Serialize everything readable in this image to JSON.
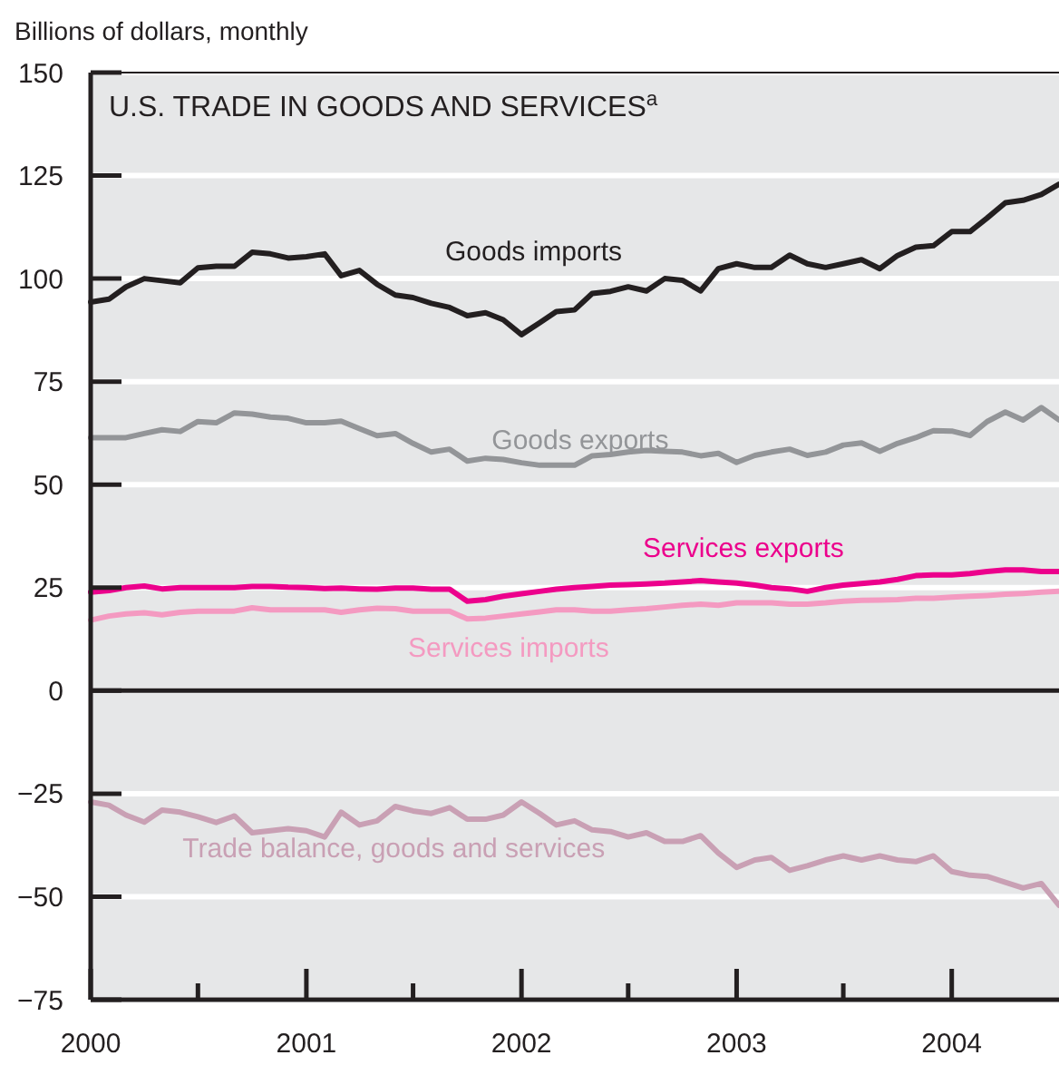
{
  "chart_data": {
    "type": "line",
    "title": "U.S. TRADE IN GOODS AND SERVICES$^{a}$",
    "ylabel": "Billions of dollars, monthly",
    "x": [
      "2000-01",
      "2000-02",
      "2000-03",
      "2000-04",
      "2000-05",
      "2000-06",
      "2000-07",
      "2000-08",
      "2000-09",
      "2000-10",
      "2000-11",
      "2000-12",
      "2001-01",
      "2001-02",
      "2001-03",
      "2001-04",
      "2001-05",
      "2001-06",
      "2001-07",
      "2001-08",
      "2001-09",
      "2001-10",
      "2001-11",
      "2001-12",
      "2002-01",
      "2002-02",
      "2002-03",
      "2002-04",
      "2002-05",
      "2002-06",
      "2002-07",
      "2002-08",
      "2002-09",
      "2002-10",
      "2002-11",
      "2002-12",
      "2003-01",
      "2003-02",
      "2003-03",
      "2003-04",
      "2003-05",
      "2003-06",
      "2003-07",
      "2003-08",
      "2003-09",
      "2003-10",
      "2003-11",
      "2003-12",
      "2004-01",
      "2004-02",
      "2004-03",
      "2004-04",
      "2004-05",
      "2004-06",
      "2004-07"
    ],
    "series": [
      {
        "name": "Goods imports",
        "color": "#231f20",
        "values": [
          94.3,
          95,
          98,
          100,
          99.5,
          99,
          102.6,
          103,
          103,
          106.4,
          106,
          105,
          105.3,
          106,
          100.7,
          102,
          98.6,
          96,
          95.4,
          94,
          93,
          91,
          91.7,
          90,
          86.4,
          89.3,
          92,
          92.4,
          96.4,
          96.9,
          98,
          97,
          100,
          99.6,
          97,
          102.4,
          103.6,
          102.7,
          102.7,
          105.7,
          103.6,
          102.7,
          103.6,
          104.6,
          102.4,
          105.6,
          107.6,
          108,
          111.4,
          111.4,
          114.7,
          118.4,
          119,
          120.4,
          122.9
        ]
      },
      {
        "name": "Goods exports",
        "color": "#939598",
        "values": [
          61.4,
          61.4,
          61.4,
          62.4,
          63.3,
          62.9,
          65.3,
          65,
          67.4,
          67.1,
          66.4,
          66.1,
          65,
          65,
          65.4,
          63.6,
          61.9,
          62.4,
          60,
          57.9,
          58.6,
          55.7,
          56.4,
          56.1,
          55.3,
          54.7,
          54.7,
          54.7,
          57,
          57.3,
          57.9,
          58.3,
          58.1,
          57.9,
          57,
          57.6,
          55.4,
          57.1,
          57.9,
          58.6,
          57.1,
          57.9,
          59.6,
          60.1,
          58.1,
          60,
          61.4,
          63.1,
          63,
          61.9,
          65.3,
          67.6,
          65.7,
          68.7,
          65.7
        ]
      },
      {
        "name": "Services exports",
        "color": "#ec008c",
        "values": [
          23.9,
          24.3,
          25,
          25.4,
          24.7,
          25,
          25,
          25,
          25,
          25.3,
          25.3,
          25.1,
          25,
          24.8,
          24.9,
          24.7,
          24.6,
          24.9,
          24.9,
          24.6,
          24.6,
          21.7,
          22.1,
          22.9,
          23.5,
          24.1,
          24.6,
          25,
          25.3,
          25.6,
          25.7,
          25.9,
          26.1,
          26.4,
          26.7,
          26.4,
          26.1,
          25.6,
          25,
          24.7,
          24.1,
          25,
          25.6,
          26,
          26.4,
          27,
          27.9,
          28.1,
          28.1,
          28.4,
          28.9,
          29.3,
          29.3,
          28.9,
          28.9
        ]
      },
      {
        "name": "Services imports",
        "color": "#f49ac1",
        "values": [
          17.1,
          18.1,
          18.6,
          18.9,
          18.4,
          19,
          19.3,
          19.3,
          19.3,
          20.1,
          19.6,
          19.6,
          19.6,
          19.6,
          19,
          19.6,
          20,
          19.9,
          19.3,
          19.3,
          19.3,
          17.4,
          17.6,
          18.1,
          18.6,
          19.1,
          19.6,
          19.6,
          19.3,
          19.3,
          19.6,
          19.9,
          20.3,
          20.7,
          21,
          20.7,
          21.3,
          21.3,
          21.3,
          21,
          21,
          21.3,
          21.7,
          21.9,
          22,
          22.1,
          22.4,
          22.4,
          22.7,
          22.9,
          23.1,
          23.4,
          23.6,
          23.9,
          24.1
        ]
      },
      {
        "name": "Trade balance, goods and services",
        "color": "#c9a0b4",
        "values": [
          -27,
          -27.8,
          -30.2,
          -31.9,
          -29,
          -29.5,
          -30.6,
          -32,
          -30.4,
          -34.5,
          -34,
          -33.5,
          -34,
          -35.5,
          -29.5,
          -32.6,
          -31.6,
          -28.1,
          -29.2,
          -29.8,
          -28.4,
          -31.2,
          -31.2,
          -30.2,
          -27,
          -29.8,
          -32.6,
          -31.6,
          -33.8,
          -34.2,
          -35.5,
          -34.5,
          -36.6,
          -36.6,
          -35.2,
          -39.4,
          -42.9,
          -41.1,
          -40.5,
          -43.6,
          -42.5,
          -41.1,
          -40.1,
          -41.1,
          -40.1,
          -41.1,
          -41.5,
          -40.1,
          -43.9,
          -44.8,
          -45.1,
          -46.5,
          -47.9,
          -46.8,
          -52.1
        ]
      }
    ],
    "xlim": [
      "2000-01",
      "2004-07"
    ],
    "xticks": [
      {
        "value": "2000",
        "label": "2000"
      },
      {
        "value": "2000-07",
        "label": null
      },
      {
        "value": "2001",
        "label": "2001"
      },
      {
        "value": "2001-07",
        "label": null
      },
      {
        "value": "2002",
        "label": "2002"
      },
      {
        "value": "2002-07",
        "label": null
      },
      {
        "value": "2003",
        "label": "2003"
      },
      {
        "value": "2003-07",
        "label": null
      },
      {
        "value": "2004",
        "label": "2004"
      }
    ],
    "ylim": [
      -75,
      150
    ],
    "yticks": [
      {
        "value": -75,
        "label": "−75"
      },
      {
        "value": -50,
        "label": "−50"
      },
      {
        "value": -25,
        "label": "−25"
      },
      0,
      25,
      50,
      75,
      100,
      125,
      150
    ],
    "ref_lines": [
      {
        "axis": "y",
        "value": 0,
        "color": "#231f20"
      }
    ],
    "grid": "y",
    "marker": "none",
    "line_style": "solid"
  }
}
